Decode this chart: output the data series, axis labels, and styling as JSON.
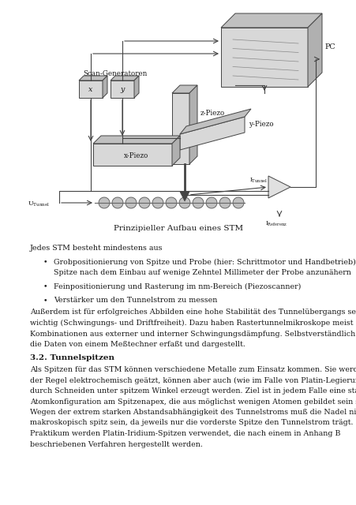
{
  "bg_color": "#ffffff",
  "fig_width": 4.52,
  "fig_height": 6.4,
  "dpi": 100,
  "caption": "Prinzipieller Aufbau eines STM",
  "text_intro": "Jedes STM besteht mindestens aus",
  "bullet1_line1": "Grobpositionierung von Spitze und Probe (hier: Schrittmotor und Handbetrieb), um die",
  "bullet1_line2": "Spitze nach dem Einbau auf wenige Zehntel Millimeter der Probe anzunähern",
  "bullet2": "Feinpositionierung und Rasterung im nm-Bereich (Piezoscanner)",
  "bullet3": "Verstärker um den Tunnelstrom zu messen",
  "para1_lines": [
    "Außerdem ist für erfolgreiches Abbilden eine hohe Stabilität des Tunnelübergangs sehr",
    "wichtig (Schwingungs- und Driftfreiheit). Dazu haben Rastertunnelmikroskope meist",
    "Kombinationen aus externer und interner Schwingungsdämpfung. Selbstverständlich werden",
    "die Daten von einem Meßtechner erfaßt und dargestellt."
  ],
  "section_title": "3.2. Tunnelspitzen",
  "para2_lines": [
    "Als Spitzen für das STM können verschiedene Metalle zum Einsatz kommen. Sie werden in",
    "der Regel elektrochemisch geätzt, können aber auch (wie im Falle von Platin-Legierungen)",
    "durch Schneiden unter spitzem Winkel erzeugt werden. Ziel ist in jedem Falle eine stabile",
    "Atomkonfiguration am Spitzenapex, die aus möglichst wenigen Atomen gebildet sein soll.",
    "Wegen der extrem starken Abstandsabhängigkeit des Tunnelstroms muß die Nadel nicht",
    "makroskopisch spitz sein, da jeweils nur die vorderste Spitze den Tunnelstrom trägt. Im",
    "Praktikum werden Platin-Iridium-Spitzen verwendet, die nach einem in Anhang B",
    "beschriebenen Verfahren hergestellt werden."
  ],
  "font_size_body": 6.8,
  "font_size_caption": 7.5,
  "font_size_section": 7.5,
  "text_color": "#1a1a1a",
  "line_color": "#444444",
  "diagram_gray_face": "#d8d8d8",
  "diagram_gray_top": "#c0c0c0",
  "diagram_gray_right": "#b0b0b0"
}
